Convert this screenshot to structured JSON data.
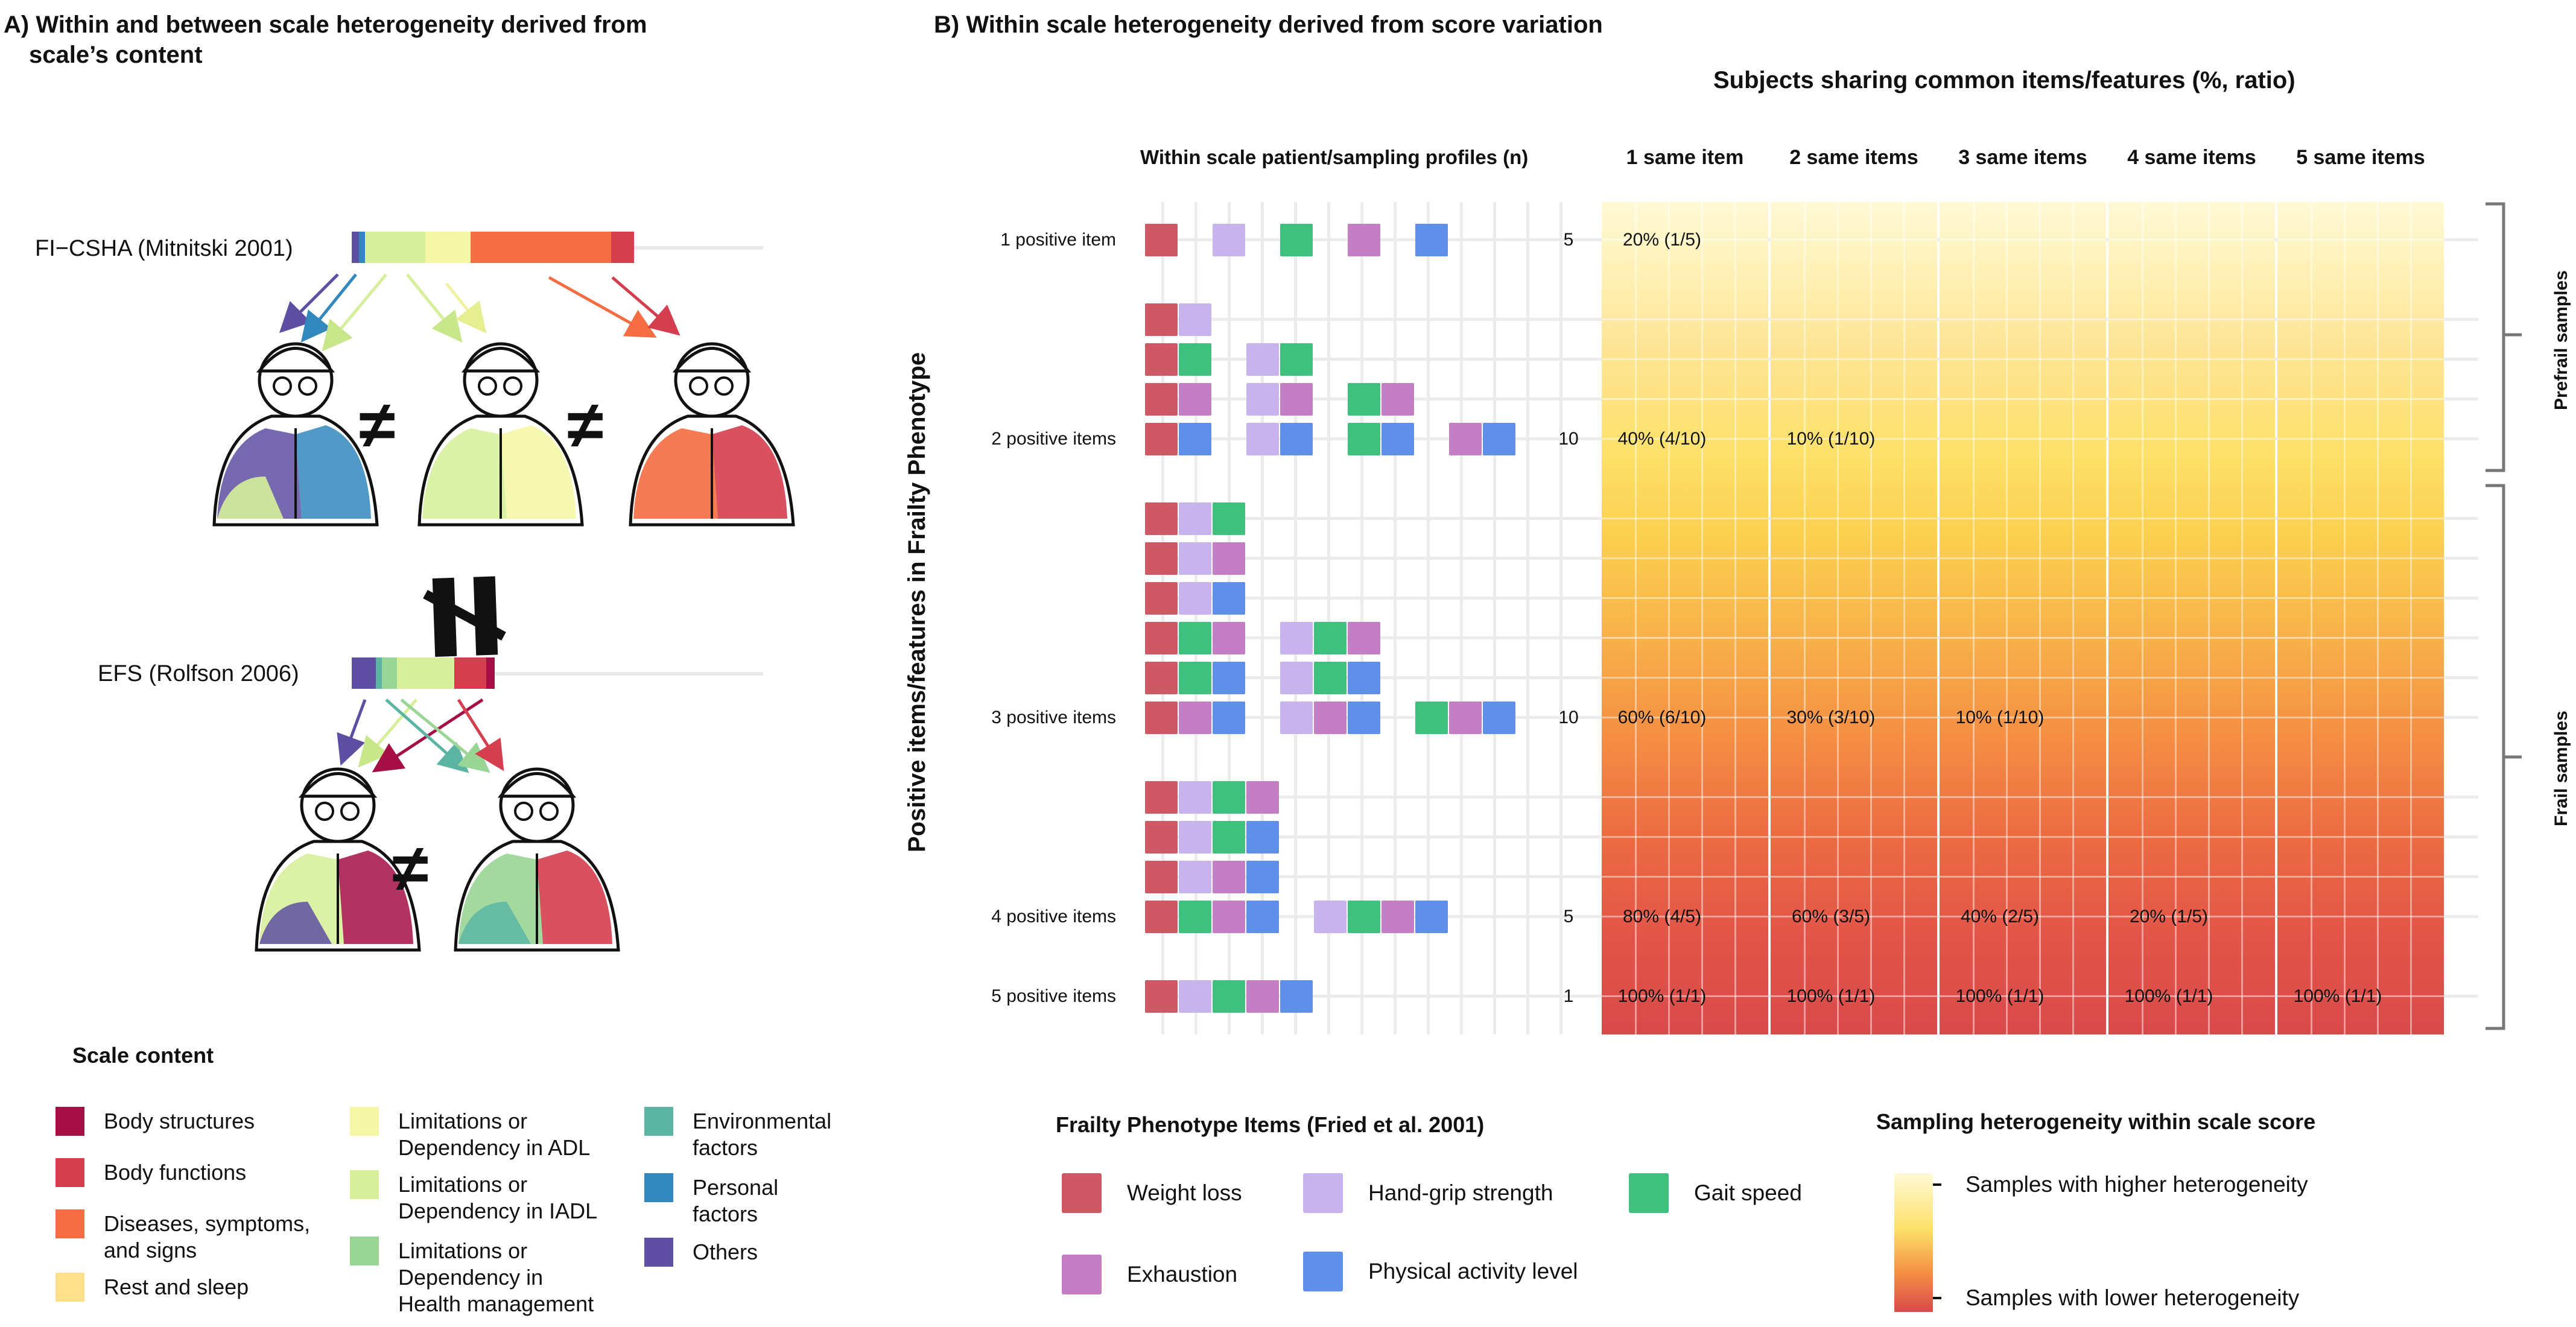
{
  "panel_a": {
    "title_line1": "A) Within and between scale heterogeneity derived from",
    "title_line2": "scale’s content",
    "scale1_label": "FI−CSHA (Mitnitski 2001)",
    "scale2_label": "EFS (Rolfson 2006)",
    "neq_symbol": "≠",
    "legend_title": "Scale content",
    "legend": [
      {
        "label_lines": [
          "Body structures"
        ],
        "color": "#a50f46"
      },
      {
        "label_lines": [
          "Body functions"
        ],
        "color": "#d53e4f"
      },
      {
        "label_lines": [
          "Diseases, symptoms,",
          "and signs"
        ],
        "color": "#f46d43"
      },
      {
        "label_lines": [
          "Rest and sleep"
        ],
        "color": "#fee08b"
      },
      {
        "label_lines": [
          "Limitations or",
          "Dependency in ADL"
        ],
        "color": "#f6f7a6"
      },
      {
        "label_lines": [
          "Limitations or",
          "Dependency in IADL"
        ],
        "color": "#d7ef9b"
      },
      {
        "label_lines": [
          "Limitations or",
          "Dependency in",
          "Health management"
        ],
        "color": "#99d594"
      },
      {
        "label_lines": [
          "Environmental",
          "factors"
        ],
        "color": "#5cb5a3"
      },
      {
        "label_lines": [
          "Personal",
          "factors"
        ],
        "color": "#3288bd"
      },
      {
        "label_lines": [
          "Others"
        ],
        "color": "#5e4fa2"
      }
    ]
  },
  "panel_b": {
    "title": "B) Within scale heterogeneity derived from score variation",
    "top_header": "Subjects sharing common items/features (%, ratio)",
    "profiles_header": "Within scale patient/sampling profiles (n)",
    "col_headers": [
      "1 same item",
      "2 same items",
      "3 same items",
      "4 same items",
      "5 same items"
    ],
    "y_axis_label": "Positive items/features in Frailty Phenotype",
    "rows": [
      {
        "label": "1 positive item",
        "n": "5",
        "values": [
          "20% (1/5)",
          "",
          "",
          "",
          ""
        ]
      },
      {
        "label": "2 positive items",
        "n": "10",
        "values": [
          "40% (4/10)",
          "10% (1/10)",
          "",
          "",
          ""
        ]
      },
      {
        "label": "3 positive items",
        "n": "10",
        "values": [
          "60% (6/10)",
          "30% (3/10)",
          "10% (1/10)",
          "",
          ""
        ]
      },
      {
        "label": "4 positive items",
        "n": "5",
        "values": [
          "80% (4/5)",
          "60% (3/5)",
          "40% (2/5)",
          "20% (1/5)",
          ""
        ]
      },
      {
        "label": "5 positive items",
        "n": "1",
        "values": [
          "100% (1/1)",
          "100% (1/1)",
          "100% (1/1)",
          "100% (1/1)",
          "100% (1/1)"
        ]
      }
    ],
    "bracket_prefrail": "Prefrail samples",
    "bracket_frail": "Frail samples",
    "items_legend_title": "Frailty Phenotype Items (Fried et al. 2001)",
    "items": [
      {
        "key": "W",
        "label": "Weight loss",
        "color": "#cc5963"
      },
      {
        "key": "H",
        "label": "Hand-grip strength",
        "color": "#c7b3ee"
      },
      {
        "key": "G",
        "label": "Gait speed",
        "color": "#3fc07f"
      },
      {
        "key": "E",
        "label": "Exhaustion",
        "color": "#c47fc4"
      },
      {
        "key": "P",
        "label": "Physical activity level",
        "color": "#5f8fe8"
      }
    ],
    "heat_legend_title": "Sampling heterogeneity within scale score",
    "heat_legend_high": "Samples with higher heterogeneity",
    "heat_legend_low": "Samples with lower heterogeneity"
  }
}
